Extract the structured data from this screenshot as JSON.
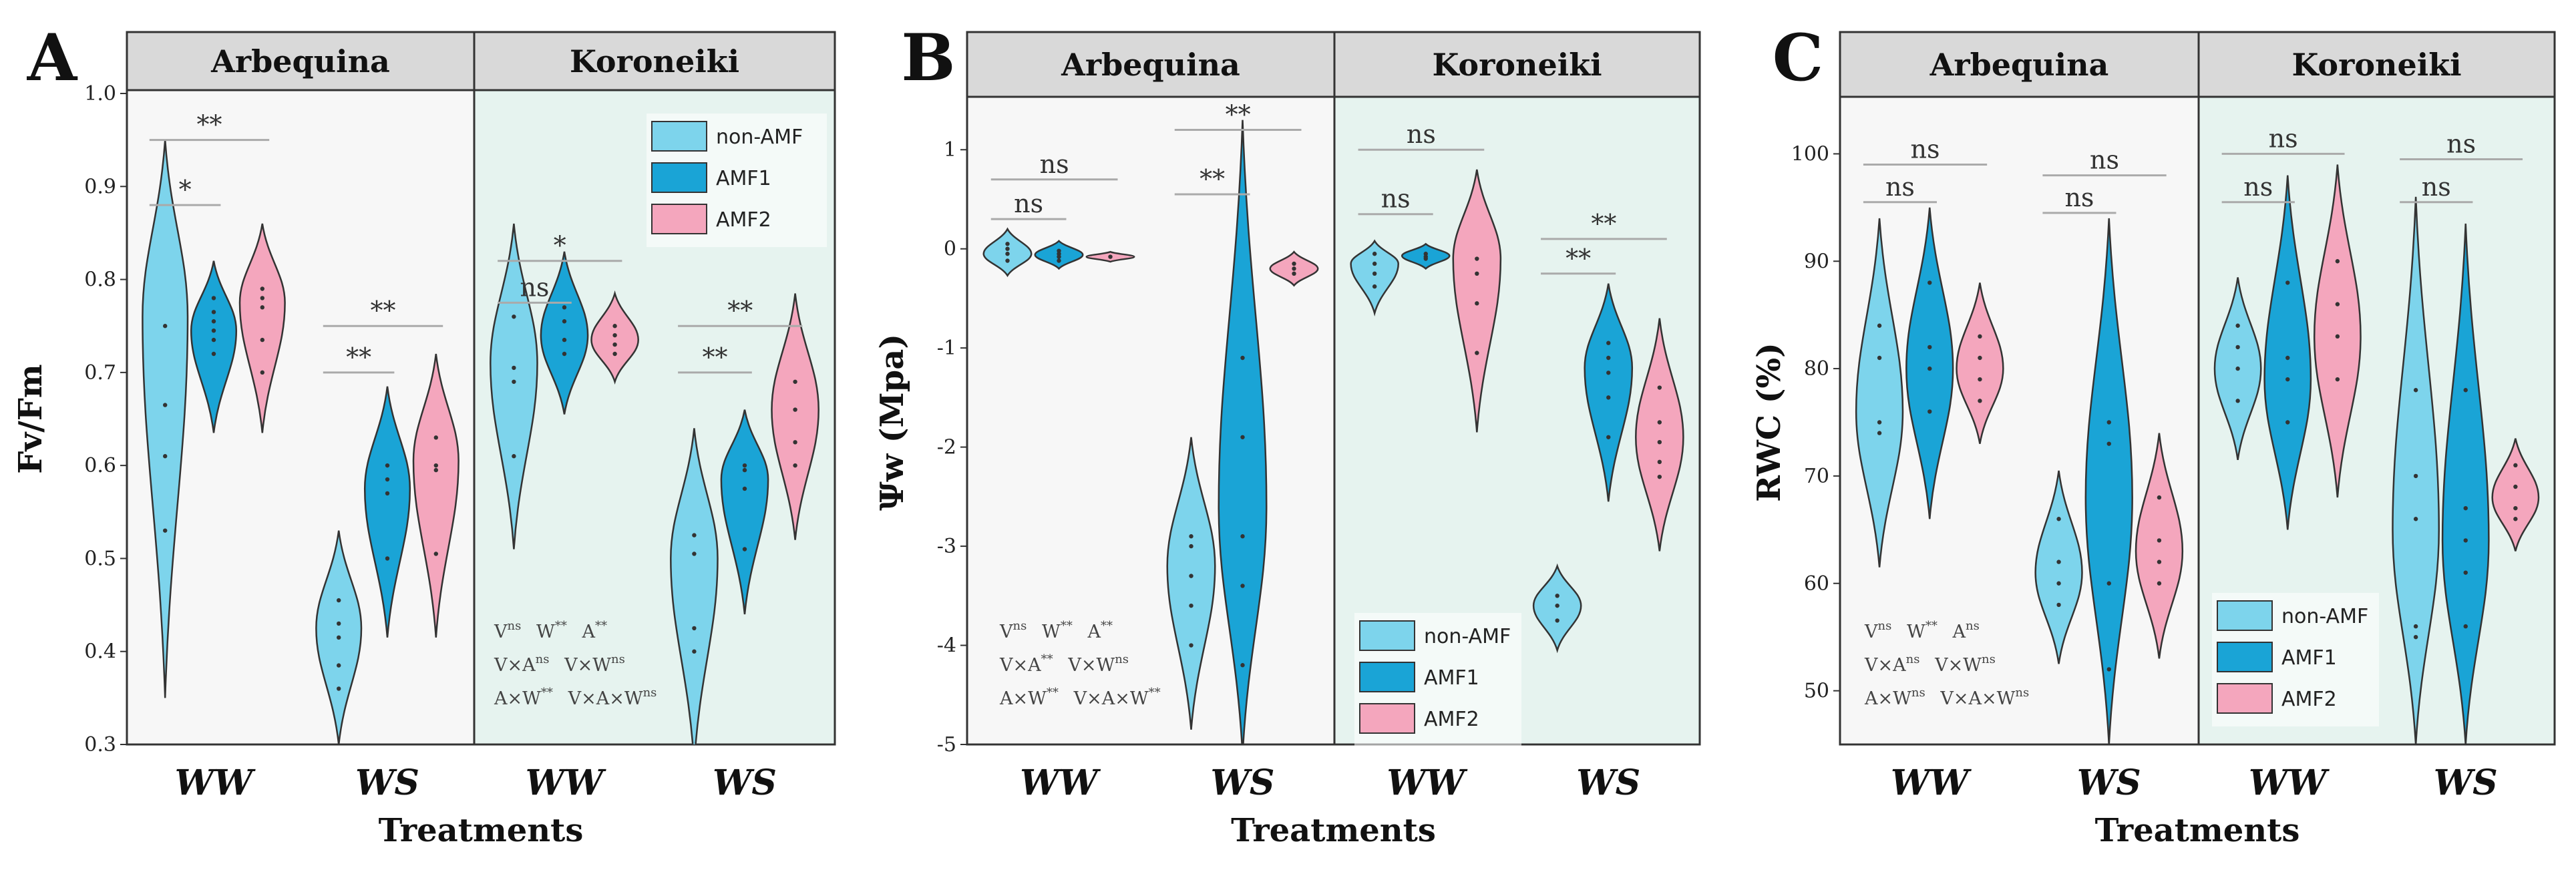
{
  "colors": {
    "non_AMF": "#7dd4ec",
    "AMF1": "#1aa4d6",
    "AMF2": "#f4a6bd",
    "bg_arbequina": "#f7f7f7",
    "bg_koroneiki": "#e6f3ef",
    "strip_bg": "#d9d9d9",
    "bracket": "#aaaaaa"
  },
  "chart_data": [
    {
      "type": "violin",
      "panel": "A",
      "facets": [
        "Arbequina",
        "Koroneiki"
      ],
      "categories": [
        "WW",
        "WS"
      ],
      "groups": [
        "non-AMF",
        "AMF1",
        "AMF2"
      ],
      "xlabel": "Treatments",
      "ylabel": "Fv/Fm",
      "ylim": [
        0.3,
        1.0
      ],
      "yticks": [
        0.3,
        0.4,
        0.5,
        0.6,
        0.7,
        0.8,
        0.9,
        1.0
      ],
      "ytick_labels": [
        "0.3",
        "0.4",
        "0.5",
        "0.6",
        "0.7",
        "0.8",
        "0.9",
        "1.0"
      ],
      "legend": {
        "position": "top-right",
        "labels": [
          "non-AMF",
          "AMF1",
          "AMF2"
        ]
      },
      "stats_lines": [
        [
          {
            "base": "V",
            "sup": "ns"
          },
          {
            "base": "W",
            "sup": "**"
          },
          {
            "base": "A",
            "sup": "**"
          }
        ],
        [
          {
            "base": "V×A",
            "sup": "ns"
          },
          {
            "base": "V×W",
            "sup": "ns"
          }
        ],
        [
          {
            "base": "A×W",
            "sup": "**"
          },
          {
            "base": "V×A×W",
            "sup": "ns"
          }
        ]
      ],
      "violins": [
        {
          "facet": "Arbequina",
          "treatment": "WW",
          "group": "non-AMF",
          "min": 0.35,
          "max": 0.95,
          "peak": 0.76,
          "points": [
            0.75,
            0.665,
            0.61,
            0.53
          ]
        },
        {
          "facet": "Arbequina",
          "treatment": "WW",
          "group": "AMF1",
          "min": 0.635,
          "max": 0.82,
          "peak": 0.745,
          "points": [
            0.78,
            0.765,
            0.755,
            0.745,
            0.735,
            0.72
          ]
        },
        {
          "facet": "Arbequina",
          "treatment": "WW",
          "group": "AMF2",
          "min": 0.635,
          "max": 0.86,
          "peak": 0.775,
          "points": [
            0.79,
            0.78,
            0.77,
            0.735,
            0.7
          ]
        },
        {
          "facet": "Arbequina",
          "treatment": "WS",
          "group": "non-AMF",
          "min": 0.3,
          "max": 0.53,
          "peak": 0.425,
          "points": [
            0.455,
            0.43,
            0.415,
            0.385,
            0.36
          ]
        },
        {
          "facet": "Arbequina",
          "treatment": "WS",
          "group": "AMF1",
          "min": 0.415,
          "max": 0.685,
          "peak": 0.575,
          "points": [
            0.6,
            0.585,
            0.57,
            0.5
          ]
        },
        {
          "facet": "Arbequina",
          "treatment": "WS",
          "group": "AMF2",
          "min": 0.415,
          "max": 0.72,
          "peak": 0.605,
          "points": [
            0.63,
            0.6,
            0.595,
            0.505
          ]
        },
        {
          "facet": "Koroneiki",
          "treatment": "WW",
          "group": "non-AMF",
          "min": 0.51,
          "max": 0.86,
          "peak": 0.71,
          "points": [
            0.76,
            0.705,
            0.69,
            0.61
          ]
        },
        {
          "facet": "Koroneiki",
          "treatment": "WW",
          "group": "AMF1",
          "min": 0.655,
          "max": 0.83,
          "peak": 0.74,
          "points": [
            0.77,
            0.755,
            0.735,
            0.72
          ]
        },
        {
          "facet": "Koroneiki",
          "treatment": "WW",
          "group": "AMF2",
          "min": 0.69,
          "max": 0.785,
          "peak": 0.735,
          "points": [
            0.75,
            0.74,
            0.73,
            0.72
          ]
        },
        {
          "facet": "Koroneiki",
          "treatment": "WS",
          "group": "non-AMF",
          "min": 0.28,
          "max": 0.64,
          "peak": 0.5,
          "points": [
            0.525,
            0.505,
            0.425,
            0.4
          ]
        },
        {
          "facet": "Koroneiki",
          "treatment": "WS",
          "group": "AMF1",
          "min": 0.44,
          "max": 0.66,
          "peak": 0.585,
          "points": [
            0.6,
            0.595,
            0.575,
            0.51
          ]
        },
        {
          "facet": "Koroneiki",
          "treatment": "WS",
          "group": "AMF2",
          "min": 0.52,
          "max": 0.785,
          "peak": 0.66,
          "points": [
            0.69,
            0.66,
            0.625,
            0.6
          ]
        }
      ],
      "brackets": [
        {
          "facet": "Arbequina",
          "treatment": "WW",
          "from": 0,
          "to": 2,
          "y": 0.95,
          "label": "**"
        },
        {
          "facet": "Arbequina",
          "treatment": "WW",
          "from": 0,
          "to": 1,
          "y": 0.88,
          "label": "*"
        },
        {
          "facet": "Arbequina",
          "treatment": "WS",
          "from": 0,
          "to": 2,
          "y": 0.75,
          "label": "**"
        },
        {
          "facet": "Arbequina",
          "treatment": "WS",
          "from": 0,
          "to": 1,
          "y": 0.7,
          "label": "**"
        },
        {
          "facet": "Koroneiki",
          "treatment": "WW",
          "from": 0,
          "to": 2,
          "y": 0.82,
          "label": "*"
        },
        {
          "facet": "Koroneiki",
          "treatment": "WW",
          "from": 0,
          "to": 1,
          "y": 0.775,
          "label": "ns"
        },
        {
          "facet": "Koroneiki",
          "treatment": "WS",
          "from": 0,
          "to": 2,
          "y": 0.75,
          "label": "**"
        },
        {
          "facet": "Koroneiki",
          "treatment": "WS",
          "from": 0,
          "to": 1,
          "y": 0.7,
          "label": "**"
        }
      ]
    },
    {
      "type": "violin",
      "panel": "B",
      "facets": [
        "Arbequina",
        "Koroneiki"
      ],
      "categories": [
        "WW",
        "WS"
      ],
      "groups": [
        "non-AMF",
        "AMF1",
        "AMF2"
      ],
      "xlabel": "Treatments",
      "ylabel": "Ψw (Mpa)",
      "ylim": [
        -5,
        1.5
      ],
      "yticks": [
        -5,
        -4,
        -3,
        -2,
        -1,
        0,
        1
      ],
      "ytick_labels": [
        "-5",
        "-4",
        "-3",
        "-2",
        "-1",
        "0",
        "1"
      ],
      "legend": {
        "position": "bottom-left of Koroneiki",
        "labels": [
          "non-AMF",
          "AMF1",
          "AMF2"
        ]
      },
      "stats_lines": [
        [
          {
            "base": "V",
            "sup": "ns"
          },
          {
            "base": "W",
            "sup": "**"
          },
          {
            "base": "A",
            "sup": "**"
          }
        ],
        [
          {
            "base": "V×A",
            "sup": "**"
          },
          {
            "base": "V×W",
            "sup": "ns"
          }
        ],
        [
          {
            "base": "A×W",
            "sup": "**"
          },
          {
            "base": "V×A×W",
            "sup": "**"
          }
        ]
      ],
      "violins": [
        {
          "facet": "Arbequina",
          "treatment": "WW",
          "group": "non-AMF",
          "min": -0.27,
          "max": 0.2,
          "peak": -0.05,
          "points": [
            0.05,
            0.0,
            -0.05,
            -0.12
          ]
        },
        {
          "facet": "Arbequina",
          "treatment": "WW",
          "group": "AMF1",
          "min": -0.2,
          "max": 0.08,
          "peak": -0.06,
          "points": [
            -0.02,
            -0.05,
            -0.08,
            -0.12
          ]
        },
        {
          "facet": "Arbequina",
          "treatment": "WW",
          "group": "AMF2",
          "min": -0.13,
          "max": -0.03,
          "peak": -0.08,
          "points": [
            -0.08
          ]
        },
        {
          "facet": "Arbequina",
          "treatment": "WS",
          "group": "non-AMF",
          "min": -4.85,
          "max": -1.9,
          "peak": -3.2,
          "points": [
            -2.9,
            -3.0,
            -3.3,
            -3.6,
            -4.0
          ]
        },
        {
          "facet": "Arbequina",
          "treatment": "WS",
          "group": "AMF1",
          "min": -5.1,
          "max": 1.3,
          "peak": -2.6,
          "points": [
            -1.1,
            -1.9,
            -2.9,
            -3.4,
            -4.2
          ]
        },
        {
          "facet": "Arbequina",
          "treatment": "WS",
          "group": "AMF2",
          "min": -0.37,
          "max": -0.03,
          "peak": -0.2,
          "points": [
            -0.15,
            -0.2,
            -0.25
          ]
        },
        {
          "facet": "Koroneiki",
          "treatment": "WW",
          "group": "non-AMF",
          "min": -0.65,
          "max": 0.08,
          "peak": -0.15,
          "points": [
            -0.05,
            -0.15,
            -0.25,
            -0.38
          ]
        },
        {
          "facet": "Koroneiki",
          "treatment": "WW",
          "group": "AMF1",
          "min": -0.2,
          "max": 0.05,
          "peak": -0.07,
          "points": [
            -0.05,
            -0.08,
            -0.1
          ]
        },
        {
          "facet": "Koroneiki",
          "treatment": "WW",
          "group": "AMF2",
          "min": -1.85,
          "max": 0.8,
          "peak": -0.1,
          "points": [
            -0.1,
            -0.25,
            -0.55,
            -1.05
          ]
        },
        {
          "facet": "Koroneiki",
          "treatment": "WS",
          "group": "non-AMF",
          "min": -4.05,
          "max": -3.2,
          "peak": -3.6,
          "points": [
            -3.5,
            -3.6,
            -3.75
          ]
        },
        {
          "facet": "Koroneiki",
          "treatment": "WS",
          "group": "AMF1",
          "min": -2.55,
          "max": -0.35,
          "peak": -1.2,
          "points": [
            -0.95,
            -1.1,
            -1.25,
            -1.5,
            -1.9
          ]
        },
        {
          "facet": "Koroneiki",
          "treatment": "WS",
          "group": "AMF2",
          "min": -3.05,
          "max": -0.7,
          "peak": -1.9,
          "points": [
            -1.4,
            -1.75,
            -1.95,
            -2.15,
            -2.3
          ]
        }
      ],
      "brackets": [
        {
          "facet": "Arbequina",
          "treatment": "WW",
          "from": 0,
          "to": 2,
          "y": 0.7,
          "label": "ns"
        },
        {
          "facet": "Arbequina",
          "treatment": "WW",
          "from": 0,
          "to": 1,
          "y": 0.3,
          "label": "ns"
        },
        {
          "facet": "Arbequina",
          "treatment": "WS",
          "from": 0,
          "to": 2,
          "y": 1.2,
          "label": "**"
        },
        {
          "facet": "Arbequina",
          "treatment": "WS",
          "from": 0,
          "to": 1,
          "y": 0.55,
          "label": "**"
        },
        {
          "facet": "Koroneiki",
          "treatment": "WW",
          "from": 0,
          "to": 2,
          "y": 1.0,
          "label": "ns"
        },
        {
          "facet": "Koroneiki",
          "treatment": "WW",
          "from": 0,
          "to": 1,
          "y": 0.35,
          "label": "ns"
        },
        {
          "facet": "Koroneiki",
          "treatment": "WS",
          "from": 0,
          "to": 2,
          "y": 0.1,
          "label": "**"
        },
        {
          "facet": "Koroneiki",
          "treatment": "WS",
          "from": 0,
          "to": 1,
          "y": -0.25,
          "label": "**"
        }
      ]
    },
    {
      "type": "violin",
      "panel": "C",
      "facets": [
        "Arbequina",
        "Koroneiki"
      ],
      "categories": [
        "WW",
        "WS"
      ],
      "groups": [
        "non-AMF",
        "AMF1",
        "AMF2"
      ],
      "xlabel": "Treatments",
      "ylabel": "RWC (%)",
      "ylim": [
        45,
        105
      ],
      "yticks": [
        50,
        60,
        70,
        80,
        90,
        100
      ],
      "ytick_labels": [
        "50",
        "60",
        "70",
        "80",
        "90",
        "100"
      ],
      "legend": {
        "position": "bottom-left of Koroneiki",
        "labels": [
          "non-AMF",
          "AMF1",
          "AMF2"
        ]
      },
      "stats_lines": [
        [
          {
            "base": "V",
            "sup": "ns"
          },
          {
            "base": "W",
            "sup": "**"
          },
          {
            "base": "A",
            "sup": "ns"
          }
        ],
        [
          {
            "base": "V×A",
            "sup": "ns"
          },
          {
            "base": "V×W",
            "sup": "ns"
          }
        ],
        [
          {
            "base": "A×W",
            "sup": "ns"
          },
          {
            "base": "V×A×W",
            "sup": "ns"
          }
        ]
      ],
      "violins": [
        {
          "facet": "Arbequina",
          "treatment": "WW",
          "group": "non-AMF",
          "min": 61.5,
          "max": 94,
          "peak": 76,
          "points": [
            84,
            81,
            75,
            74
          ]
        },
        {
          "facet": "Arbequina",
          "treatment": "WW",
          "group": "AMF1",
          "min": 66,
          "max": 95,
          "peak": 80,
          "points": [
            88,
            82,
            80,
            76
          ]
        },
        {
          "facet": "Arbequina",
          "treatment": "WW",
          "group": "AMF2",
          "min": 73,
          "max": 88,
          "peak": 80,
          "points": [
            83,
            81,
            79,
            77
          ]
        },
        {
          "facet": "Arbequina",
          "treatment": "WS",
          "group": "non-AMF",
          "min": 52.5,
          "max": 70.5,
          "peak": 61,
          "points": [
            66,
            62,
            60,
            58
          ]
        },
        {
          "facet": "Arbequina",
          "treatment": "WS",
          "group": "AMF1",
          "min": 45,
          "max": 94,
          "peak": 68,
          "points": [
            75,
            73,
            60,
            52
          ]
        },
        {
          "facet": "Arbequina",
          "treatment": "WS",
          "group": "AMF2",
          "min": 53,
          "max": 74,
          "peak": 63,
          "points": [
            68,
            64,
            62,
            60
          ]
        },
        {
          "facet": "Koroneiki",
          "treatment": "WW",
          "group": "non-AMF",
          "min": 71.5,
          "max": 88.5,
          "peak": 80,
          "points": [
            84,
            82,
            80,
            77
          ]
        },
        {
          "facet": "Koroneiki",
          "treatment": "WW",
          "group": "AMF1",
          "min": 65,
          "max": 98,
          "peak": 79,
          "points": [
            88,
            81,
            79,
            75
          ]
        },
        {
          "facet": "Koroneiki",
          "treatment": "WW",
          "group": "AMF2",
          "min": 68,
          "max": 99,
          "peak": 83,
          "points": [
            90,
            86,
            83,
            79
          ]
        },
        {
          "facet": "Koroneiki",
          "treatment": "WS",
          "group": "non-AMF",
          "min": 45,
          "max": 96,
          "peak": 65,
          "points": [
            78,
            70,
            66,
            56,
            55
          ]
        },
        {
          "facet": "Koroneiki",
          "treatment": "WS",
          "group": "AMF1",
          "min": 45,
          "max": 93.5,
          "peak": 64,
          "points": [
            78,
            67,
            64,
            61,
            56
          ]
        },
        {
          "facet": "Koroneiki",
          "treatment": "WS",
          "group": "AMF2",
          "min": 63,
          "max": 73.5,
          "peak": 68,
          "points": [
            71,
            69,
            67,
            66
          ]
        }
      ],
      "brackets": [
        {
          "facet": "Arbequina",
          "treatment": "WW",
          "from": 0,
          "to": 2,
          "y": 99,
          "label": "ns"
        },
        {
          "facet": "Arbequina",
          "treatment": "WW",
          "from": 0,
          "to": 1,
          "y": 95.5,
          "label": "ns"
        },
        {
          "facet": "Arbequina",
          "treatment": "WS",
          "from": 0,
          "to": 2,
          "y": 98,
          "label": "ns"
        },
        {
          "facet": "Arbequina",
          "treatment": "WS",
          "from": 0,
          "to": 1,
          "y": 94.5,
          "label": "ns"
        },
        {
          "facet": "Koroneiki",
          "treatment": "WW",
          "from": 0,
          "to": 2,
          "y": 100,
          "label": "ns"
        },
        {
          "facet": "Koroneiki",
          "treatment": "WW",
          "from": 0,
          "to": 1,
          "y": 95.5,
          "label": "ns"
        },
        {
          "facet": "Koroneiki",
          "treatment": "WS",
          "from": 0,
          "to": 2,
          "y": 99.5,
          "label": "ns"
        },
        {
          "facet": "Koroneiki",
          "treatment": "WS",
          "from": 0,
          "to": 1,
          "y": 95.5,
          "label": "ns"
        }
      ]
    }
  ]
}
